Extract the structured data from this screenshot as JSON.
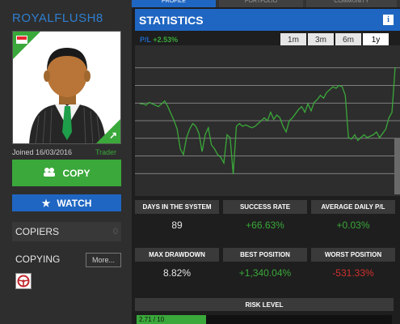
{
  "profile": {
    "username": "ROYALFLUSH8",
    "joined": "Joined 16/03/2016",
    "role": "Trader",
    "copy_label": "COPY",
    "watch_label": "WATCH",
    "copiers_label": "COPIERS",
    "copiers_count": "0",
    "copying_label": "COPYING",
    "more_label": "More..."
  },
  "tabs": [
    {
      "label": "PROFILE"
    },
    {
      "label": "PORTFOLIO"
    },
    {
      "label": "COMMUNITY"
    }
  ],
  "statistics": {
    "title": "STATISTICS",
    "legend_key": "P/L",
    "legend_value": "+2.53%",
    "periods": [
      "1m",
      "3m",
      "6m",
      "1y"
    ],
    "active_period": "1y"
  },
  "chart_data": {
    "type": "line",
    "grid": true,
    "ylim": [
      0,
      100
    ],
    "series": [
      {
        "color": "#3aa83a",
        "values": [
          62,
          62,
          61,
          63,
          62,
          61,
          60,
          62,
          64,
          60,
          55,
          50,
          44,
          30,
          26,
          38,
          44,
          48,
          46,
          41,
          28,
          40,
          45,
          33,
          30,
          26,
          24,
          20,
          40,
          38,
          12,
          46,
          48,
          46,
          47,
          46,
          45,
          46,
          48,
          50,
          52,
          50,
          56,
          51,
          54,
          52,
          46,
          42,
          50,
          52,
          55,
          58,
          60,
          56,
          62,
          57,
          63,
          65,
          68,
          66,
          70,
          72,
          74,
          73,
          75,
          74,
          68,
          38,
          37,
          40,
          36,
          38,
          40,
          38,
          39,
          40,
          42,
          38,
          41,
          44,
          52,
          56,
          88
        ]
      }
    ]
  },
  "stats": [
    {
      "label": "DAYS IN THE SYSTEM",
      "value": "89",
      "tone": "neutral"
    },
    {
      "label": "SUCCESS RATE",
      "value": "+66.63%",
      "tone": "pos"
    },
    {
      "label": "AVERAGE DAILY P/L",
      "value": "+0.03%",
      "tone": "pos"
    },
    {
      "label": "MAX DRAWDOWN",
      "value": "8.82%",
      "tone": "neutral"
    },
    {
      "label": "BEST POSITION",
      "value": "+1,340.04%",
      "tone": "pos"
    },
    {
      "label": "WORST POSITION",
      "value": "-531.33%",
      "tone": "neg"
    }
  ],
  "risk": {
    "label": "RISK LEVEL",
    "value_text": "2.71 / 10",
    "fraction": 0.271
  },
  "colors": {
    "accent_blue": "#1f66c2",
    "accent_green": "#3aa83a",
    "negative_red": "#d0312d"
  }
}
